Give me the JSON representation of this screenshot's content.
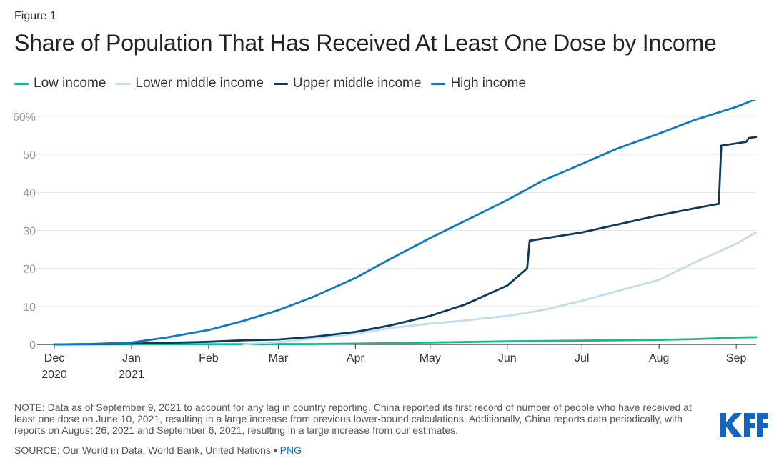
{
  "figure_label": "Figure 1",
  "title": "Share of Population That Has Received At Least One Dose by Income",
  "legend": [
    {
      "name": "Low income",
      "color": "#1cb88a"
    },
    {
      "name": "Lower middle income",
      "color": "#c3ddef"
    },
    {
      "name": "Upper middle income",
      "color": "#0b3a5d"
    },
    {
      "name": "High income",
      "color": "#0f78c4"
    }
  ],
  "note": "NOTE: Data as of September 9, 2021 to account for any lag in country reporting. China reported its first record of number of people who have received at least one dose on June 10, 2021, resulting in a large increase from previous lower-bound calculations. Additionally, China reports data periodically, with reports on August 26, 2021 and September 6, 2021, resulting in a large increase from our estimates.",
  "source": {
    "text": "SOURCE: Our World in Data, World Bank, United Nations •",
    "link": "PNG"
  },
  "logo_text": "KFF",
  "chart_data": {
    "type": "line",
    "x_unit": "date",
    "x_range": [
      "2020-12-01",
      "2021-09-09"
    ],
    "ylim": [
      0,
      60
    ],
    "yticks": [
      {
        "value": 0,
        "label": "0"
      },
      {
        "value": 10,
        "label": "10"
      },
      {
        "value": 20,
        "label": "20"
      },
      {
        "value": 30,
        "label": "30"
      },
      {
        "value": 40,
        "label": "40"
      },
      {
        "value": 50,
        "label": "50"
      },
      {
        "value": 60,
        "label": "60%"
      }
    ],
    "xticks": [
      {
        "date": "2020-12-01",
        "label": "Dec",
        "sublabel": "2020"
      },
      {
        "date": "2021-01-01",
        "label": "Jan",
        "sublabel": "2021"
      },
      {
        "date": "2021-02-01",
        "label": "Feb"
      },
      {
        "date": "2021-03-01",
        "label": "Mar"
      },
      {
        "date": "2021-04-01",
        "label": "Apr"
      },
      {
        "date": "2021-05-01",
        "label": "May"
      },
      {
        "date": "2021-06-01",
        "label": "Jun"
      },
      {
        "date": "2021-07-01",
        "label": "Jul"
      },
      {
        "date": "2021-08-01",
        "label": "Aug"
      },
      {
        "date": "2021-09-01",
        "label": "Sep"
      }
    ],
    "grid": true,
    "series": [
      {
        "name": "Low income",
        "color": "#1cb88a",
        "points": [
          [
            "2020-12-01",
            0
          ],
          [
            "2021-03-15",
            0.1
          ],
          [
            "2021-04-01",
            0.2
          ],
          [
            "2021-05-01",
            0.5
          ],
          [
            "2021-06-01",
            0.8
          ],
          [
            "2021-07-01",
            1.0
          ],
          [
            "2021-08-01",
            1.2
          ],
          [
            "2021-08-15",
            1.4
          ],
          [
            "2021-09-01",
            1.8
          ],
          [
            "2021-09-09",
            1.9
          ]
        ]
      },
      {
        "name": "Lower middle income",
        "color": "#c3ddef",
        "points": [
          [
            "2021-02-15",
            0
          ],
          [
            "2021-03-01",
            0.6
          ],
          [
            "2021-03-15",
            1.5
          ],
          [
            "2021-04-01",
            2.8
          ],
          [
            "2021-04-15",
            4.3
          ],
          [
            "2021-05-01",
            5.5
          ],
          [
            "2021-05-15",
            6.3
          ],
          [
            "2021-06-01",
            7.5
          ],
          [
            "2021-06-15",
            9.0
          ],
          [
            "2021-07-01",
            11.5
          ],
          [
            "2021-07-15",
            14.0
          ],
          [
            "2021-08-01",
            17.0
          ],
          [
            "2021-08-15",
            21.5
          ],
          [
            "2021-09-01",
            26.5
          ],
          [
            "2021-09-09",
            29.5
          ]
        ]
      },
      {
        "name": "Upper middle income",
        "color": "#0b3a5d",
        "points": [
          [
            "2020-12-01",
            0
          ],
          [
            "2021-01-01",
            0.2
          ],
          [
            "2021-02-01",
            0.7
          ],
          [
            "2021-02-15",
            1.1
          ],
          [
            "2021-03-01",
            1.3
          ],
          [
            "2021-03-15",
            2.0
          ],
          [
            "2021-04-01",
            3.3
          ],
          [
            "2021-04-15",
            5.0
          ],
          [
            "2021-05-01",
            7.5
          ],
          [
            "2021-05-15",
            10.5
          ],
          [
            "2021-06-01",
            15.5
          ],
          [
            "2021-06-09",
            20.0
          ],
          [
            "2021-06-10",
            27.3
          ],
          [
            "2021-07-01",
            29.5
          ],
          [
            "2021-07-15",
            31.5
          ],
          [
            "2021-08-01",
            34.0
          ],
          [
            "2021-08-15",
            35.8
          ],
          [
            "2021-08-25",
            37.0
          ],
          [
            "2021-08-26",
            52.3
          ],
          [
            "2021-09-05",
            53.3
          ],
          [
            "2021-09-06",
            54.3
          ],
          [
            "2021-09-09",
            54.6
          ]
        ]
      },
      {
        "name": "High income",
        "color": "#0f78c4",
        "points": [
          [
            "2020-12-01",
            0
          ],
          [
            "2020-12-15",
            0.1
          ],
          [
            "2021-01-01",
            0.5
          ],
          [
            "2021-01-15",
            1.8
          ],
          [
            "2021-02-01",
            3.8
          ],
          [
            "2021-02-15",
            6.2
          ],
          [
            "2021-03-01",
            9.0
          ],
          [
            "2021-03-15",
            12.5
          ],
          [
            "2021-04-01",
            17.5
          ],
          [
            "2021-04-15",
            22.5
          ],
          [
            "2021-05-01",
            28.0
          ],
          [
            "2021-05-15",
            32.5
          ],
          [
            "2021-06-01",
            38.0
          ],
          [
            "2021-06-15",
            43.0
          ],
          [
            "2021-07-01",
            47.5
          ],
          [
            "2021-07-15",
            51.5
          ],
          [
            "2021-08-01",
            55.5
          ],
          [
            "2021-08-15",
            59.0
          ],
          [
            "2021-09-01",
            62.5
          ],
          [
            "2021-09-09",
            64.6
          ]
        ]
      }
    ]
  }
}
